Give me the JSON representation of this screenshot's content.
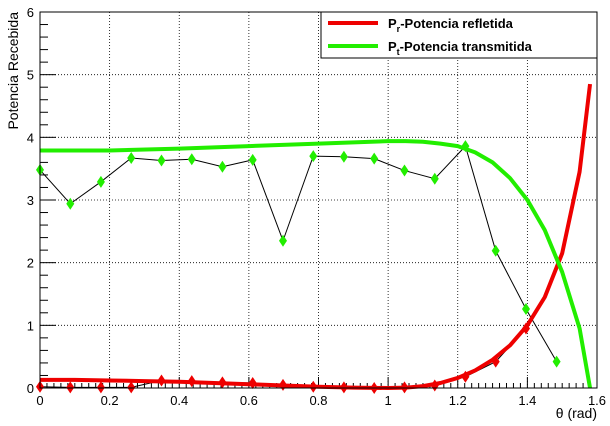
{
  "chart_data": {
    "type": "line",
    "title": "",
    "xlabel": "θ (rad)",
    "ylabel": "Potencia Recebida",
    "xlim": [
      0,
      1.6
    ],
    "ylim": [
      0,
      6
    ],
    "x_ticks": [
      "0",
      "0.2",
      "0.4",
      "0.6",
      "0.8",
      "1",
      "1.2",
      "1.4",
      "1.6"
    ],
    "y_ticks": [
      "0",
      "1",
      "2",
      "3",
      "4",
      "5",
      "6"
    ],
    "grid": true,
    "legend_position": "top-right",
    "legend": [
      {
        "main": "P",
        "sub": "r",
        "rest": "-Potencia refletida",
        "color": "#ee0000"
      },
      {
        "main": "P",
        "sub": "t",
        "rest": "-Potencia transmitida",
        "color": "#22ee00"
      }
    ],
    "series": [
      {
        "kind": "curve",
        "color": "#ee0000",
        "x": [
          0,
          0.1,
          0.2,
          0.3,
          0.4,
          0.5,
          0.6,
          0.7,
          0.8,
          0.9,
          1.0,
          1.05,
          1.1,
          1.15,
          1.2,
          1.25,
          1.3,
          1.35,
          1.4,
          1.45,
          1.5,
          1.55,
          1.58
        ],
        "y": [
          0.13,
          0.13,
          0.12,
          0.11,
          0.1,
          0.08,
          0.06,
          0.04,
          0.02,
          0.005,
          0.0,
          0.005,
          0.03,
          0.08,
          0.16,
          0.28,
          0.45,
          0.68,
          1.0,
          1.45,
          2.15,
          3.45,
          4.85
        ]
      },
      {
        "kind": "curve",
        "color": "#22ee00",
        "x": [
          0,
          0.2,
          0.4,
          0.6,
          0.8,
          1.0,
          1.05,
          1.1,
          1.15,
          1.2,
          1.25,
          1.3,
          1.35,
          1.4,
          1.45,
          1.5,
          1.55,
          1.58
        ],
        "y": [
          3.79,
          3.79,
          3.82,
          3.86,
          3.9,
          3.94,
          3.94,
          3.93,
          3.9,
          3.86,
          3.76,
          3.6,
          3.35,
          3.0,
          2.52,
          1.85,
          0.95,
          0.0
        ]
      },
      {
        "kind": "measured",
        "color": "#22ee00",
        "x": [
          0,
          0.087,
          0.175,
          0.262,
          0.349,
          0.436,
          0.524,
          0.611,
          0.698,
          0.785,
          0.873,
          0.96,
          1.047,
          1.134,
          1.222,
          1.309,
          1.396,
          1.484
        ],
        "y": [
          3.48,
          2.94,
          3.29,
          3.67,
          3.63,
          3.65,
          3.53,
          3.64,
          2.35,
          3.7,
          3.69,
          3.66,
          3.47,
          3.34,
          3.86,
          2.19,
          1.26,
          0.42
        ]
      },
      {
        "kind": "measured",
        "color": "#ee0000",
        "x": [
          0,
          0.087,
          0.175,
          0.262,
          0.349,
          0.436,
          0.524,
          0.611,
          0.698,
          0.785,
          0.873,
          0.96,
          1.047,
          1.134,
          1.222,
          1.309,
          1.396
        ],
        "y": [
          0.02,
          0.01,
          0.01,
          0.01,
          0.12,
          0.11,
          0.09,
          0.08,
          0.05,
          0.02,
          0.01,
          0.0,
          0.01,
          0.04,
          0.18,
          0.42,
          0.95
        ]
      }
    ]
  }
}
